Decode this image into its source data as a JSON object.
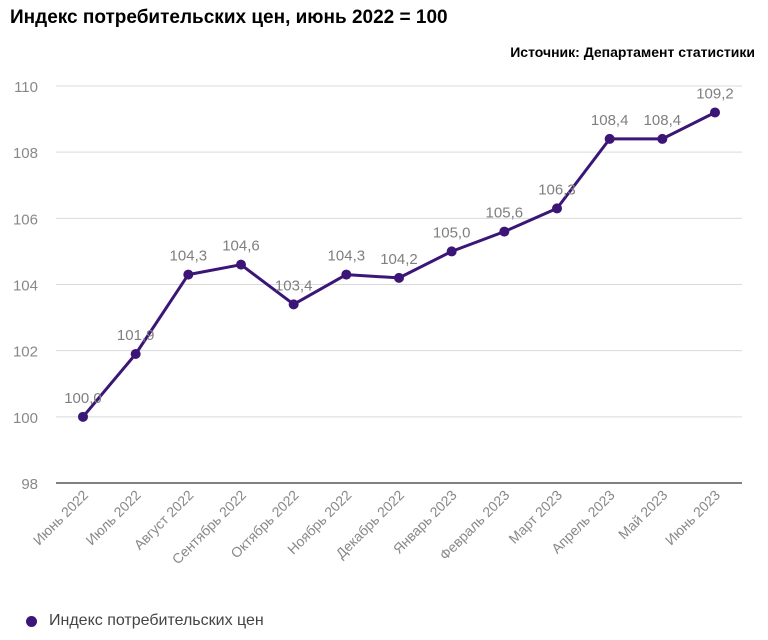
{
  "colors": {
    "series": "#3b1677",
    "grid": "#d9d9d9",
    "axis_text": "#888888",
    "label_text": "#7f7f7f"
  },
  "chart_data": {
    "type": "line",
    "title": "Индекс потребительских цен, июнь 2022 = 100",
    "source": "Источник: Департамент статистики",
    "categories": [
      "Июнь 2022",
      "Июль 2022",
      "Август 2022",
      "Сентябрь 2022",
      "Октябрь 2022",
      "Ноябрь 2022",
      "Декабрь 2022",
      "Январь 2023",
      "Февраль 2023",
      "Март 2023",
      "Апрель 2023",
      "Май 2023",
      "Июнь 2023"
    ],
    "series": [
      {
        "name": "Индекс потребительских цен",
        "values": [
          100.0,
          101.9,
          104.3,
          104.6,
          103.4,
          104.3,
          104.2,
          105.0,
          105.6,
          106.3,
          108.4,
          108.4,
          109.2
        ],
        "labels": [
          "100,0",
          "101,9",
          "104,3",
          "104,6",
          "103,4",
          "104,3",
          "104,2",
          "105,0",
          "105,6",
          "106,3",
          "108,4",
          "108,4",
          "109,2"
        ]
      }
    ],
    "ylim": [
      98,
      110
    ],
    "yticks": [
      98,
      100,
      102,
      104,
      106,
      108,
      110
    ],
    "legend": "bottom-left",
    "grid": true
  }
}
